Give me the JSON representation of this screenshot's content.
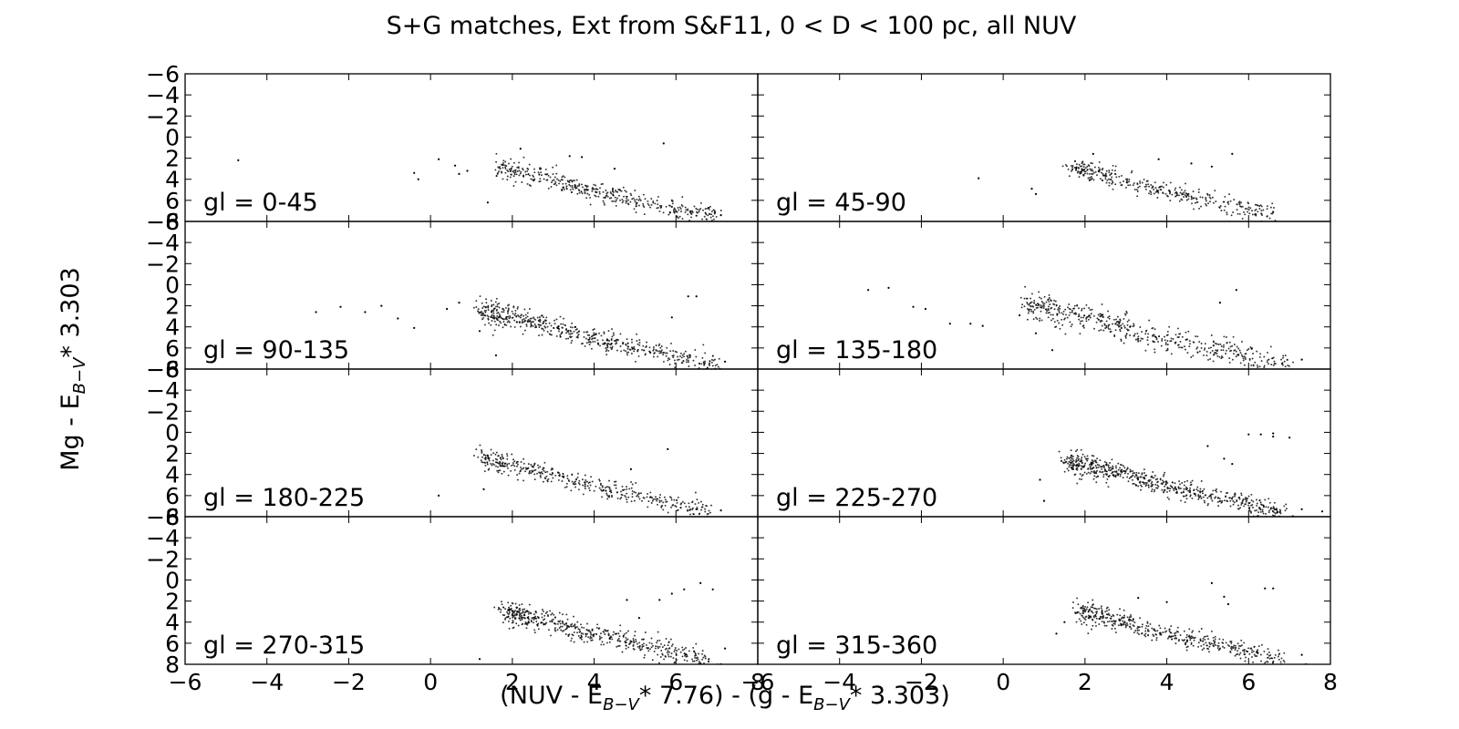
{
  "chart_data": {
    "type": "scatter",
    "title": "S+G matches, Ext from S&F11, 0 < D < 100 pc, all NUV",
    "xlabel": {
      "main1": "(NUV - E",
      "sub1": "B−V",
      "main2": "* 7.76) - (g - E",
      "sub2": "B−V",
      "main3": "* 3.303)"
    },
    "ylabel": {
      "main1": "Mg - E",
      "sub1": "B−V",
      "main2": "* 3.303"
    },
    "xlim": [
      -6,
      8
    ],
    "ylim": [
      8,
      -6
    ],
    "y_inverted": true,
    "grid": false,
    "x_ticks": [
      "−6",
      "−4",
      "−2",
      "0",
      "2",
      "4",
      "6",
      "8"
    ],
    "y_ticks": [
      "−6",
      "−4",
      "−2",
      "0",
      "2",
      "4",
      "6",
      "8"
    ],
    "marker_color": "#000000",
    "panels": [
      {
        "label": "gl = 0-45",
        "outliers": [
          [
            -4.7,
            2.2
          ],
          [
            -0.4,
            3.4
          ],
          [
            -0.3,
            4.0
          ],
          [
            0.2,
            2.1
          ],
          [
            0.6,
            2.7
          ],
          [
            0.7,
            3.5
          ],
          [
            0.9,
            3.2
          ],
          [
            1.4,
            6.2
          ],
          [
            2.2,
            1.1
          ],
          [
            3.4,
            1.8
          ],
          [
            3.7,
            1.9
          ],
          [
            4.5,
            3.0
          ],
          [
            5.7,
            0.6
          ],
          [
            7.1,
            7.4
          ],
          [
            6.8,
            6.7
          ]
        ]
      },
      {
        "label": "gl = 45-90",
        "outliers": [
          [
            -0.6,
            3.9
          ],
          [
            0.7,
            4.9
          ],
          [
            0.8,
            5.4
          ],
          [
            2.2,
            1.6
          ],
          [
            3.8,
            2.1
          ],
          [
            4.6,
            2.5
          ],
          [
            5.1,
            2.8
          ],
          [
            5.6,
            1.6
          ],
          [
            6.6,
            7.1
          ]
        ]
      },
      {
        "label": "gl = 90-135",
        "outliers": [
          [
            -2.8,
            2.6
          ],
          [
            -2.2,
            2.1
          ],
          [
            -1.6,
            2.6
          ],
          [
            -1.2,
            2.0
          ],
          [
            -0.8,
            3.2
          ],
          [
            -0.4,
            4.1
          ],
          [
            0.4,
            2.3
          ],
          [
            0.7,
            1.7
          ],
          [
            1.2,
            4.4
          ],
          [
            6.3,
            1.1
          ],
          [
            6.5,
            1.1
          ],
          [
            5.9,
            3.1
          ],
          [
            1.6,
            6.7
          ],
          [
            7.2,
            7.3
          ]
        ]
      },
      {
        "label": "gl = 135-180",
        "outliers": [
          [
            -3.3,
            0.5
          ],
          [
            -2.8,
            0.3
          ],
          [
            -2.2,
            2.1
          ],
          [
            -1.9,
            2.3
          ],
          [
            -1.3,
            3.7
          ],
          [
            -0.8,
            3.7
          ],
          [
            -0.5,
            3.9
          ],
          [
            0.4,
            2.9
          ],
          [
            0.8,
            4.6
          ],
          [
            1.2,
            6.2
          ],
          [
            5.3,
            1.7
          ],
          [
            5.7,
            0.5
          ],
          [
            7.3,
            7.1
          ]
        ]
      },
      {
        "label": "gl = 180-225",
        "outliers": [
          [
            0.2,
            6.0
          ],
          [
            1.3,
            5.4
          ],
          [
            4.9,
            3.5
          ],
          [
            5.8,
            1.6
          ],
          [
            7.1,
            7.4
          ],
          [
            6.5,
            7.3
          ]
        ]
      },
      {
        "label": "gl = 225-270",
        "outliers": [
          [
            0.9,
            4.5
          ],
          [
            1.0,
            6.5
          ],
          [
            5.0,
            1.3
          ],
          [
            5.4,
            2.5
          ],
          [
            5.6,
            3.0
          ],
          [
            6.0,
            0.2
          ],
          [
            6.3,
            0.2
          ],
          [
            6.6,
            0.4
          ],
          [
            6.6,
            0.1
          ],
          [
            7.0,
            0.5
          ],
          [
            7.3,
            7.3
          ],
          [
            7.8,
            7.5
          ]
        ]
      },
      {
        "label": "gl = 270-315",
        "outliers": [
          [
            1.2,
            7.5
          ],
          [
            4.8,
            1.9
          ],
          [
            5.1,
            3.6
          ],
          [
            5.6,
            1.9
          ],
          [
            5.9,
            1.3
          ],
          [
            6.2,
            0.9
          ],
          [
            6.6,
            0.3
          ],
          [
            6.9,
            0.9
          ],
          [
            7.2,
            6.5
          ],
          [
            7.1,
            8.0
          ],
          [
            6.6,
            7.9
          ]
        ]
      },
      {
        "label": "gl = 315-360",
        "outliers": [
          [
            1.3,
            5.1
          ],
          [
            1.5,
            4.0
          ],
          [
            3.3,
            1.7
          ],
          [
            4.0,
            2.1
          ],
          [
            5.1,
            0.3
          ],
          [
            5.4,
            1.6
          ],
          [
            5.5,
            2.3
          ],
          [
            6.4,
            0.8
          ],
          [
            6.6,
            0.8
          ],
          [
            7.3,
            7.1
          ],
          [
            7.4,
            8.0
          ]
        ]
      }
    ]
  }
}
